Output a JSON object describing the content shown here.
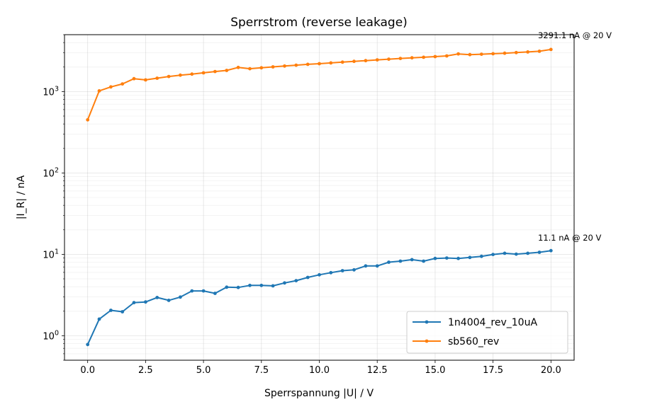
{
  "chart_data": {
    "type": "line",
    "title": "Sperrstrom (reverse leakage)",
    "xlabel": "Sperrspannung |U| / V",
    "ylabel": "|I_R| / nA",
    "xlim": [
      -1.0,
      21.0
    ],
    "ylim": [
      0.5,
      5000
    ],
    "yscale": "log",
    "x_ticks": [
      "0.0",
      "2.5",
      "5.0",
      "7.5",
      "10.0",
      "12.5",
      "15.0",
      "17.5",
      "20.0"
    ],
    "y_ticks": [
      {
        "base": "10",
        "exp": "0"
      },
      {
        "base": "10",
        "exp": "1"
      },
      {
        "base": "10",
        "exp": "2"
      },
      {
        "base": "10",
        "exp": "3"
      }
    ],
    "grid": true,
    "legend_position": "bottom-right",
    "x": [
      0,
      0.5,
      1,
      1.5,
      2,
      2.5,
      3,
      3.5,
      4,
      4.5,
      5,
      5.5,
      6,
      6.5,
      7,
      7.5,
      8,
      8.5,
      9,
      9.5,
      10,
      10.5,
      11,
      11.5,
      12,
      12.5,
      13,
      13.5,
      14,
      14.5,
      15,
      15.5,
      16,
      16.5,
      17,
      17.5,
      18,
      18.5,
      19,
      19.5,
      20
    ],
    "series": [
      {
        "name": "1n4004_rev_10uA",
        "color": "#1f77b4",
        "values": [
          0.78,
          1.6,
          2.05,
          1.97,
          2.55,
          2.6,
          2.95,
          2.72,
          2.98,
          3.55,
          3.55,
          3.32,
          3.95,
          3.92,
          4.15,
          4.15,
          4.1,
          4.45,
          4.75,
          5.2,
          5.6,
          5.95,
          6.3,
          6.45,
          7.2,
          7.2,
          8.0,
          8.25,
          8.6,
          8.25,
          8.9,
          9.0,
          8.9,
          9.15,
          9.45,
          9.95,
          10.3,
          10.05,
          10.3,
          10.6,
          11.1
        ]
      },
      {
        "name": "sb560_rev",
        "color": "#ff7f0e",
        "values": [
          450,
          1020,
          1140,
          1240,
          1440,
          1390,
          1460,
          1530,
          1590,
          1640,
          1700,
          1760,
          1820,
          1980,
          1910,
          1960,
          2010,
          2060,
          2110,
          2160,
          2200,
          2250,
          2300,
          2350,
          2400,
          2450,
          2500,
          2550,
          2600,
          2640,
          2690,
          2740,
          2900,
          2840,
          2880,
          2920,
          2960,
          3010,
          3070,
          3130,
          3291.1
        ]
      }
    ],
    "annotations": [
      "11.1 nA @ 20 V",
      "3291.1 nA @ 20 V"
    ]
  }
}
